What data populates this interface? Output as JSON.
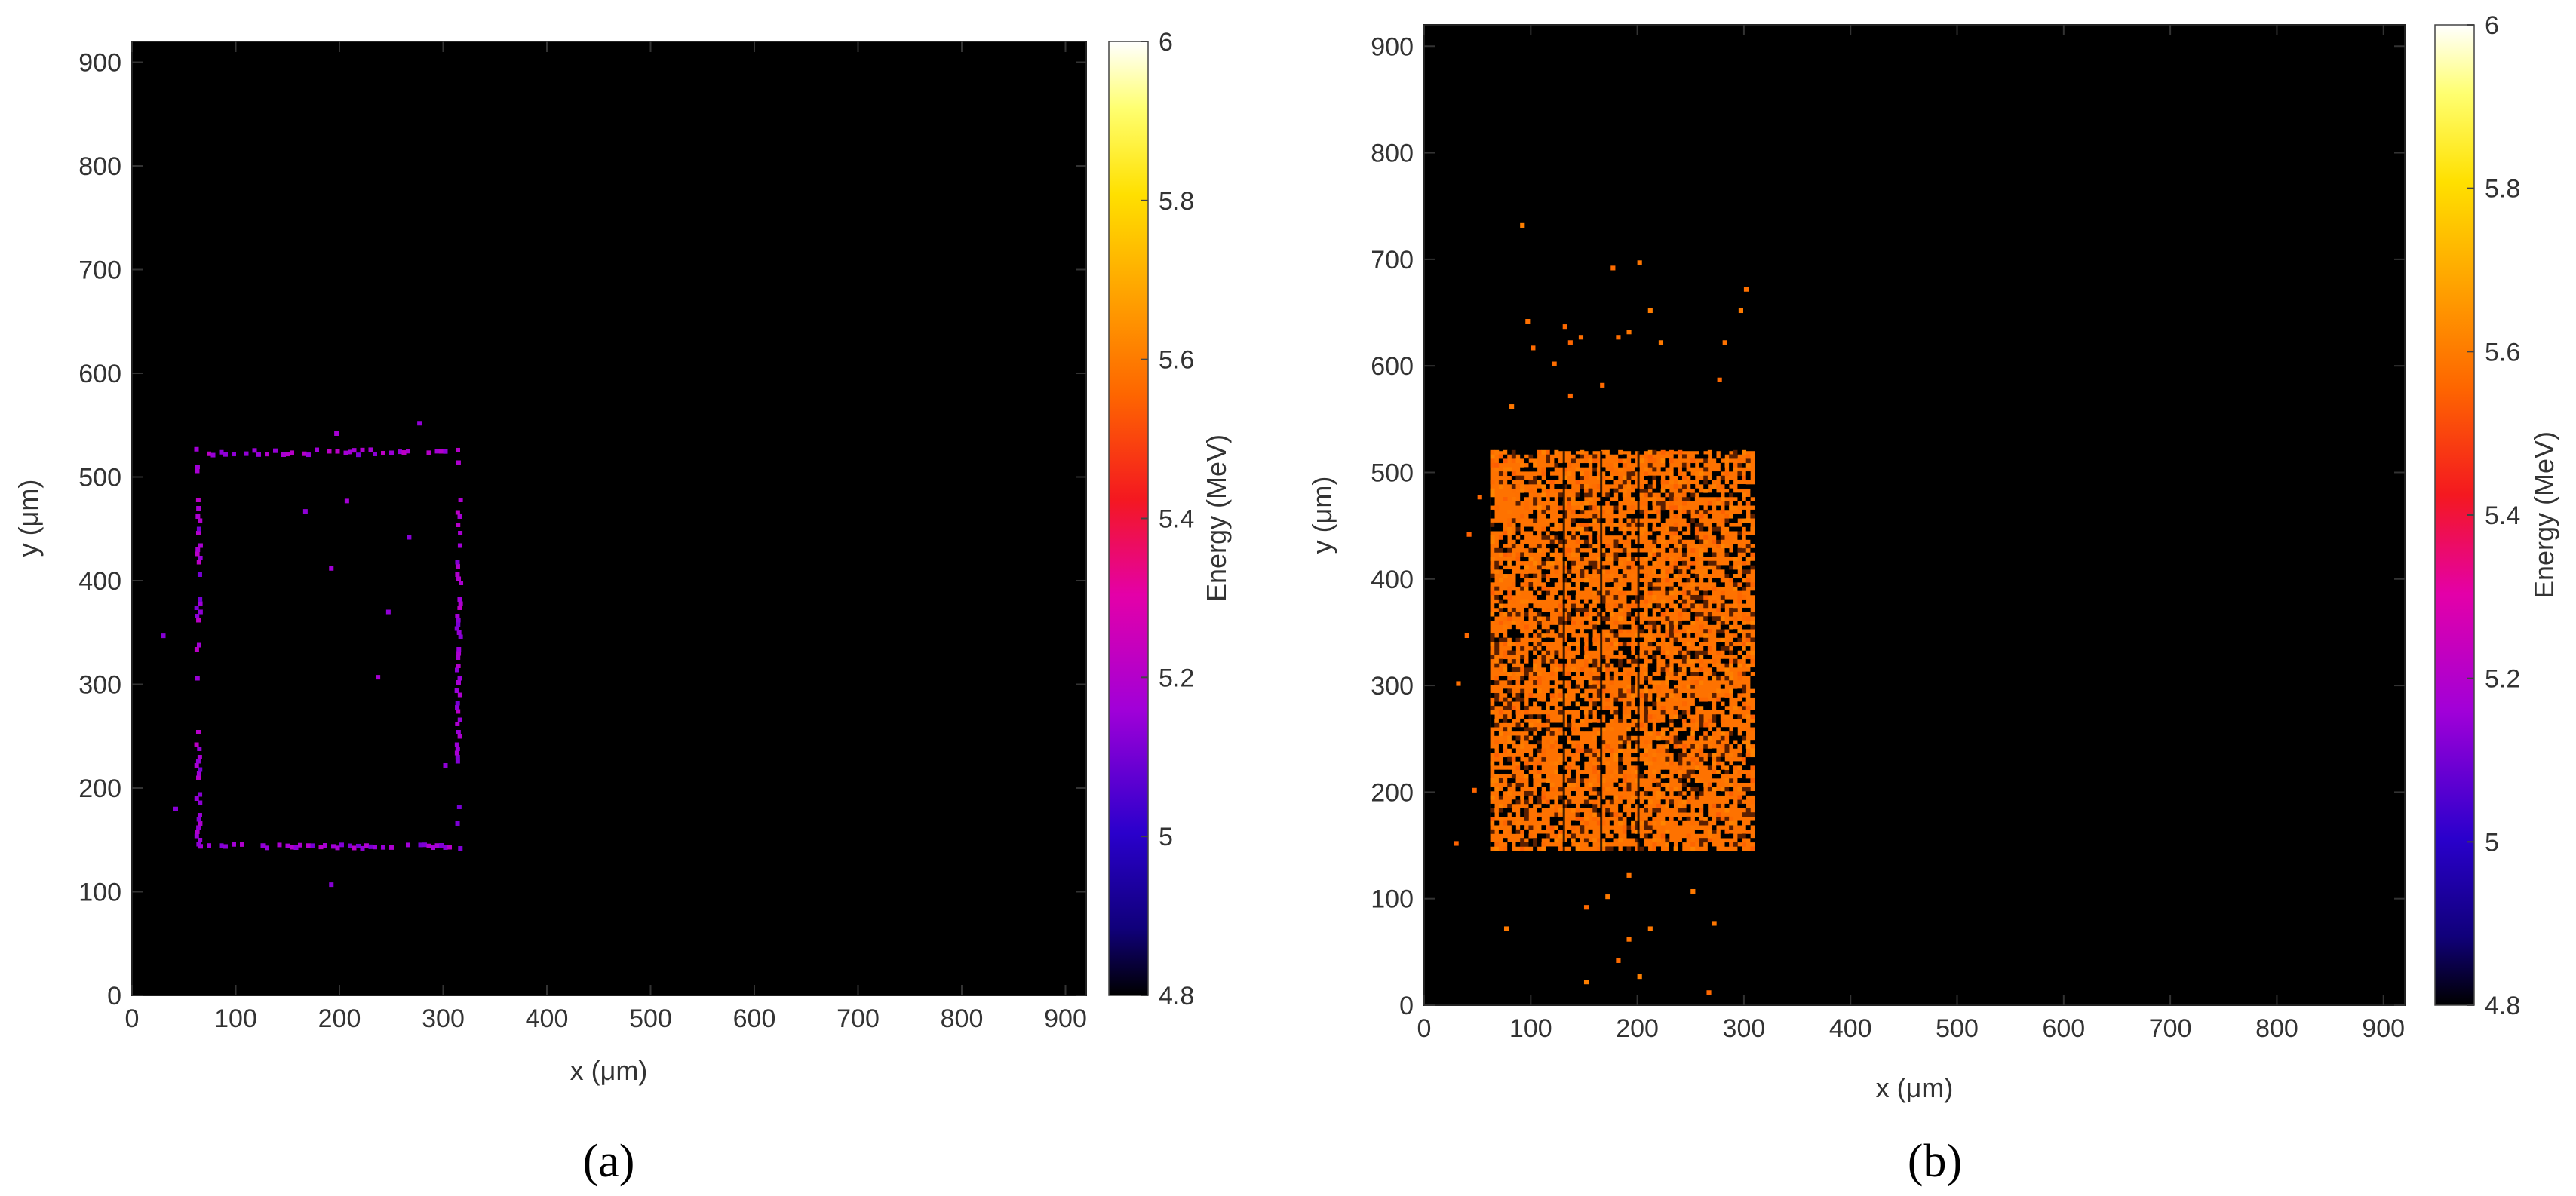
{
  "chart_data": [
    {
      "type": "heatmap",
      "panel_label": "(a)",
      "xlabel": "x (μm)",
      "ylabel": "y (μm)",
      "xlim": [
        0,
        920
      ],
      "ylim": [
        0,
        920
      ],
      "xticks": [
        0,
        100,
        200,
        300,
        400,
        500,
        600,
        700,
        800,
        900
      ],
      "yticks": [
        0,
        100,
        200,
        300,
        400,
        500,
        600,
        700,
        800,
        900
      ],
      "colorbar": {
        "label": "Energy (MeV)",
        "range": [
          4.8,
          6
        ],
        "ticks": [
          "4.8",
          "5",
          "5.2",
          "5.4",
          "5.6",
          "5.8",
          "6"
        ]
      },
      "grid": false,
      "background_color": "#000000",
      "feature": "hollow-rectangle-outline",
      "region": {
        "x": [
          60,
          315
        ],
        "y": [
          140,
          525
        ]
      },
      "dominant_energy_MeV": 5.15,
      "outlier_points": [
        {
          "x": 28,
          "y": 345
        },
        {
          "x": 40,
          "y": 178
        },
        {
          "x": 190,
          "y": 410
        },
        {
          "x": 205,
          "y": 475
        },
        {
          "x": 165,
          "y": 465
        },
        {
          "x": 235,
          "y": 305
        },
        {
          "x": 245,
          "y": 368
        },
        {
          "x": 265,
          "y": 440
        },
        {
          "x": 190,
          "y": 105
        },
        {
          "x": 195,
          "y": 540
        },
        {
          "x": 275,
          "y": 550
        },
        {
          "x": 300,
          "y": 220
        }
      ]
    },
    {
      "type": "heatmap",
      "panel_label": "(b)",
      "xlabel": "x (μm)",
      "ylabel": "y (μm)",
      "xlim": [
        0,
        920
      ],
      "ylim": [
        0,
        920
      ],
      "xticks": [
        0,
        100,
        200,
        300,
        400,
        500,
        600,
        700,
        800,
        900
      ],
      "yticks": [
        0,
        100,
        200,
        300,
        400,
        500,
        600,
        700,
        800,
        900
      ],
      "colorbar": {
        "label": "Energy (MeV)",
        "range": [
          4.8,
          6
        ],
        "ticks": [
          "4.8",
          "5",
          "5.2",
          "5.4",
          "5.6",
          "5.8",
          "6"
        ]
      },
      "grid": false,
      "background_color": "#000000",
      "feature": "filled-rectangle",
      "region": {
        "x": [
          62,
          310
        ],
        "y": [
          145,
          520
        ]
      },
      "dominant_energy_MeV": 5.58,
      "outlier_points": [
        {
          "x": 90,
          "y": 730
        },
        {
          "x": 95,
          "y": 640
        },
        {
          "x": 100,
          "y": 615
        },
        {
          "x": 120,
          "y": 600
        },
        {
          "x": 130,
          "y": 635
        },
        {
          "x": 135,
          "y": 620
        },
        {
          "x": 145,
          "y": 625
        },
        {
          "x": 165,
          "y": 580
        },
        {
          "x": 175,
          "y": 690
        },
        {
          "x": 180,
          "y": 625
        },
        {
          "x": 190,
          "y": 630
        },
        {
          "x": 200,
          "y": 695
        },
        {
          "x": 210,
          "y": 650
        },
        {
          "x": 220,
          "y": 620
        },
        {
          "x": 280,
          "y": 620
        },
        {
          "x": 295,
          "y": 650
        },
        {
          "x": 300,
          "y": 670
        },
        {
          "x": 275,
          "y": 585
        },
        {
          "x": 135,
          "y": 570
        },
        {
          "x": 80,
          "y": 560
        },
        {
          "x": 30,
          "y": 300
        },
        {
          "x": 40,
          "y": 440
        },
        {
          "x": 45,
          "y": 200
        },
        {
          "x": 50,
          "y": 475
        },
        {
          "x": 28,
          "y": 150
        },
        {
          "x": 38,
          "y": 345
        },
        {
          "x": 75,
          "y": 70
        },
        {
          "x": 150,
          "y": 20
        },
        {
          "x": 180,
          "y": 40
        },
        {
          "x": 190,
          "y": 60
        },
        {
          "x": 200,
          "y": 25
        },
        {
          "x": 210,
          "y": 70
        },
        {
          "x": 170,
          "y": 100
        },
        {
          "x": 250,
          "y": 105
        },
        {
          "x": 270,
          "y": 75
        },
        {
          "x": 265,
          "y": 10
        },
        {
          "x": 150,
          "y": 90
        },
        {
          "x": 190,
          "y": 120
        }
      ]
    }
  ]
}
